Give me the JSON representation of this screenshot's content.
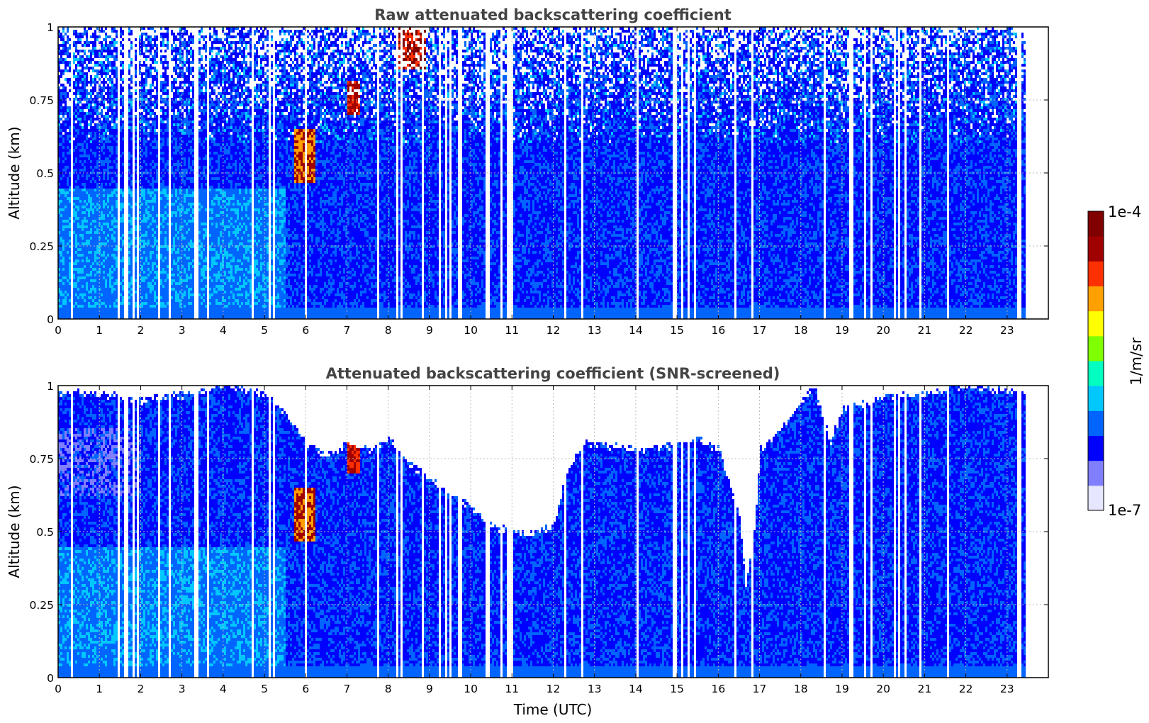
{
  "chart_data": [
    {
      "type": "heatmap",
      "title": "Raw attenuated backscattering coefficient",
      "xlabel": "",
      "ylabel": "Altitude (km)",
      "xlim": [
        0,
        24
      ],
      "ylim": [
        0,
        1
      ],
      "x_ticks": [
        "0",
        "1",
        "2",
        "3",
        "4",
        "5",
        "6",
        "7",
        "8",
        "9",
        "10",
        "11",
        "12",
        "13",
        "14",
        "15",
        "16",
        "17",
        "18",
        "19",
        "20",
        "21",
        "22",
        "23"
      ],
      "y_ticks": [
        "0",
        "0.25",
        "0.5",
        "0.75",
        "1"
      ],
      "grid": true,
      "data_end_hour": 23.45,
      "features": [
        {
          "kind": "background",
          "description_level": "blue ~1e-6 to 1e-5 1/m/sr throughout, noisy above 0.6 km"
        },
        {
          "kind": "aerosol_layer",
          "x_range": [
            0,
            5.5
          ],
          "y_range": [
            0,
            0.4
          ],
          "level": "light blue/cyan"
        },
        {
          "kind": "cloud",
          "x_range": [
            5.7,
            6.2
          ],
          "y_range": [
            0.47,
            0.65
          ],
          "level": "high"
        },
        {
          "kind": "cloud",
          "x_range": [
            7.0,
            7.3
          ],
          "y_range": [
            0.7,
            0.82
          ],
          "level": "high"
        },
        {
          "kind": "cloud",
          "x_range": [
            8.2,
            8.9
          ],
          "y_range": [
            0.85,
            1.0
          ],
          "level": "high"
        }
      ]
    },
    {
      "type": "heatmap",
      "title": "Attenuated backscattering coefficient (SNR-screened)",
      "xlabel": "Time (UTC)",
      "ylabel": "Altitude (km)",
      "xlim": [
        0,
        24
      ],
      "ylim": [
        0,
        1
      ],
      "x_ticks": [
        "0",
        "1",
        "2",
        "3",
        "4",
        "5",
        "6",
        "7",
        "8",
        "9",
        "10",
        "11",
        "12",
        "13",
        "14",
        "15",
        "16",
        "17",
        "18",
        "19",
        "20",
        "21",
        "22",
        "23"
      ],
      "y_ticks": [
        "0",
        "0.25",
        "0.5",
        "0.75",
        "1"
      ],
      "grid": true,
      "data_end_hour": 23.45,
      "valid_top_profile": [
        {
          "x": 0.0,
          "top": 0.98
        },
        {
          "x": 1.0,
          "top": 0.97
        },
        {
          "x": 2.0,
          "top": 0.95
        },
        {
          "x": 3.0,
          "top": 0.97
        },
        {
          "x": 4.0,
          "top": 1.0
        },
        {
          "x": 5.0,
          "top": 0.97
        },
        {
          "x": 5.5,
          "top": 0.9
        },
        {
          "x": 6.0,
          "top": 0.8
        },
        {
          "x": 6.5,
          "top": 0.76
        },
        {
          "x": 7.0,
          "top": 0.8
        },
        {
          "x": 7.5,
          "top": 0.78
        },
        {
          "x": 8.0,
          "top": 0.82
        },
        {
          "x": 8.5,
          "top": 0.73
        },
        {
          "x": 9.0,
          "top": 0.68
        },
        {
          "x": 9.5,
          "top": 0.63
        },
        {
          "x": 10.0,
          "top": 0.58
        },
        {
          "x": 10.5,
          "top": 0.52
        },
        {
          "x": 11.0,
          "top": 0.5
        },
        {
          "x": 11.5,
          "top": 0.5
        },
        {
          "x": 12.0,
          "top": 0.52
        },
        {
          "x": 12.3,
          "top": 0.7
        },
        {
          "x": 12.7,
          "top": 0.8
        },
        {
          "x": 13.0,
          "top": 0.8
        },
        {
          "x": 14.0,
          "top": 0.78
        },
        {
          "x": 15.0,
          "top": 0.8
        },
        {
          "x": 15.5,
          "top": 0.82
        },
        {
          "x": 16.0,
          "top": 0.78
        },
        {
          "x": 16.5,
          "top": 0.55
        },
        {
          "x": 16.65,
          "top": 0.3
        },
        {
          "x": 16.85,
          "top": 0.5
        },
        {
          "x": 17.0,
          "top": 0.78
        },
        {
          "x": 17.5,
          "top": 0.85
        },
        {
          "x": 18.0,
          "top": 0.95
        },
        {
          "x": 18.3,
          "top": 1.0
        },
        {
          "x": 18.7,
          "top": 0.8
        },
        {
          "x": 19.0,
          "top": 0.92
        },
        {
          "x": 20.0,
          "top": 0.96
        },
        {
          "x": 21.0,
          "top": 0.97
        },
        {
          "x": 22.0,
          "top": 1.0
        },
        {
          "x": 23.0,
          "top": 0.98
        },
        {
          "x": 23.45,
          "top": 0.98
        }
      ]
    }
  ],
  "colorbar": {
    "label": "1/m/sr",
    "max_label": "1e-4",
    "min_label": "1e-7",
    "scale": "log",
    "colors": [
      "#e6e6ff",
      "#7f7fff",
      "#0000ff",
      "#0064ff",
      "#00c8ff",
      "#00ffc0",
      "#80ff00",
      "#ffff00",
      "#ffa000",
      "#ff3000",
      "#a00000",
      "#800000"
    ]
  }
}
